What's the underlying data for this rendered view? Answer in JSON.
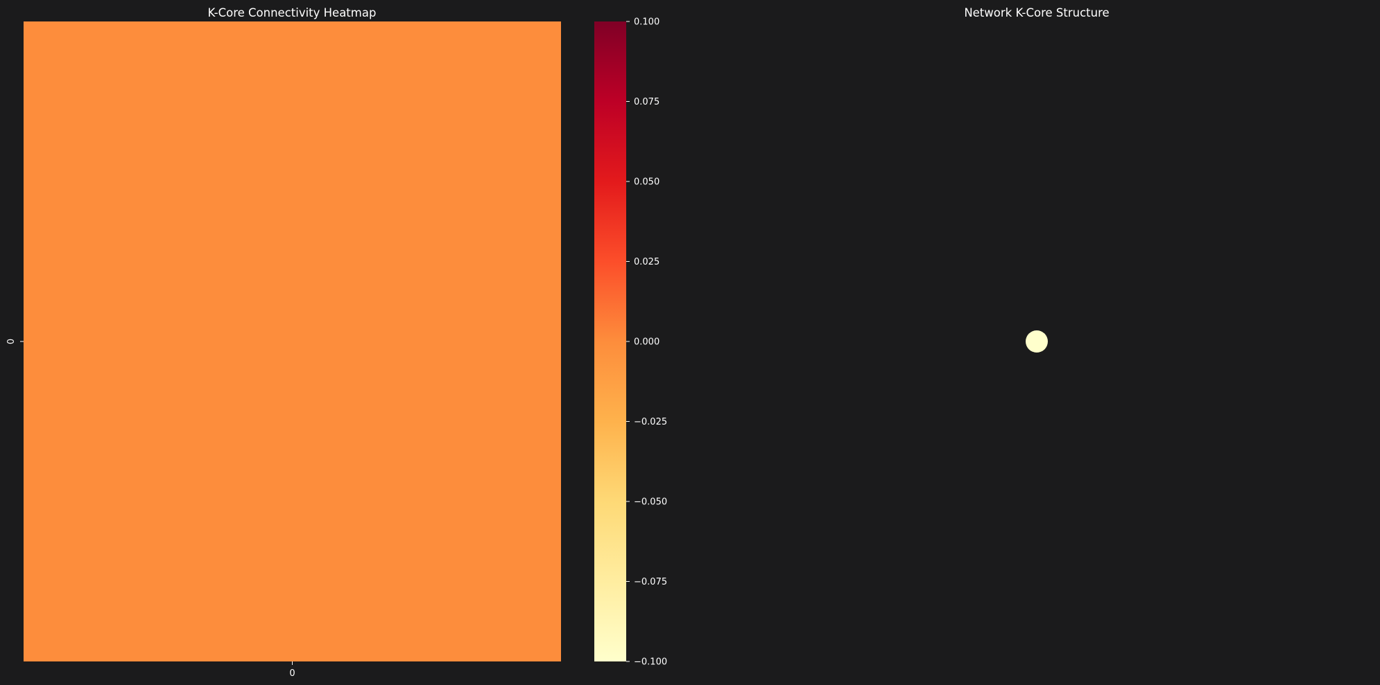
{
  "figure": {
    "background": "#1b1b1c",
    "text_color": "#ffffff"
  },
  "chart_data": [
    {
      "type": "heatmap",
      "title": "K-Core Connectivity Heatmap",
      "xlabel": "",
      "ylabel": "",
      "x_categories": [
        "0"
      ],
      "y_categories": [
        "0"
      ],
      "values": [
        [
          0
        ]
      ],
      "colormap": "YlOrRd",
      "colorbar": {
        "vmin": -0.1,
        "vmax": 0.1,
        "ticks": [
          -0.1,
          -0.075,
          -0.05,
          -0.025,
          0,
          0.025,
          0.05,
          0.075,
          0.1
        ],
        "tick_labels": [
          "−0.100",
          "−0.075",
          "−0.050",
          "−0.025",
          "0.000",
          "0.025",
          "0.050",
          "0.075",
          "0.100"
        ],
        "stops": [
          "#ffffcc",
          "#ffeda0",
          "#fed976",
          "#feb24c",
          "#fd8d3c",
          "#fc4e2a",
          "#e31a1c",
          "#bd0026",
          "#800026"
        ]
      },
      "cell_color": "#fd8d3c"
    },
    {
      "type": "scatter",
      "title": "Network K-Core Structure",
      "axes_visible": false,
      "nodes": [
        {
          "x": 0,
          "y": 0,
          "color": "#ffffcc"
        }
      ],
      "xlim": [
        -1,
        1
      ],
      "ylim": [
        -1,
        1
      ]
    }
  ]
}
